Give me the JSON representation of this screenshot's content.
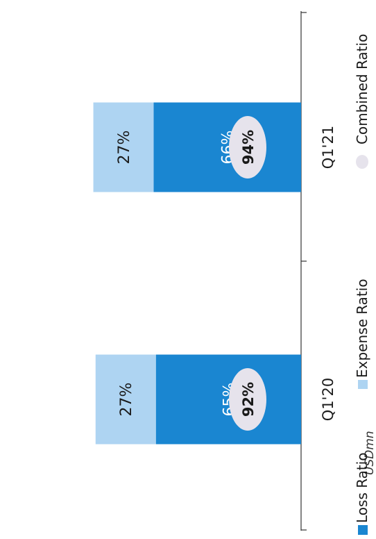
{
  "chart_data": {
    "type": "bar",
    "stacked": true,
    "orientation": "rotated-90-ccw",
    "unit_label": "USDmn",
    "categories": [
      "Q1'20",
      "Q1'21"
    ],
    "series": [
      {
        "name": "Loss Ratio",
        "values": [
          65,
          66
        ],
        "labels": [
          "65%",
          "66%"
        ]
      },
      {
        "name": "Expense Ratio",
        "values": [
          27,
          27
        ],
        "labels": [
          "27%",
          "27%"
        ]
      }
    ],
    "combined": {
      "name": "Combined Ratio",
      "values": [
        92,
        94
      ],
      "labels": [
        "92%",
        "94%"
      ]
    },
    "legend_position": "bottom",
    "colors": {
      "loss": "#1a86d1",
      "expense": "#aed4f2",
      "combined": "#e6e3ec",
      "text_dark": "#1a1a1a",
      "axis": "#333333"
    }
  }
}
